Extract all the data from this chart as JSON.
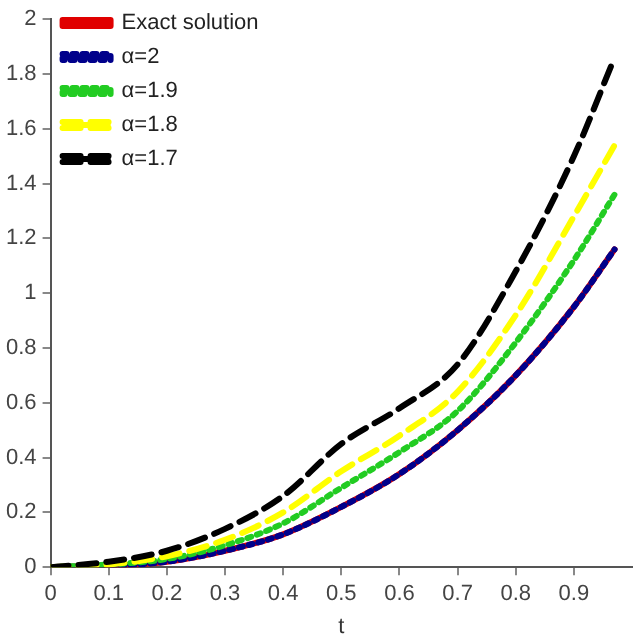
{
  "chart_data": {
    "type": "line",
    "xlabel": "t",
    "x": [
      0,
      0.1,
      0.2,
      0.3,
      0.4,
      0.5,
      0.6,
      0.7,
      0.8,
      0.9,
      0.97
    ],
    "xlim": [
      0,
      1
    ],
    "xticks": [
      0,
      0.1,
      0.2,
      0.3,
      0.4,
      0.5,
      0.6,
      0.7,
      0.8,
      0.9
    ],
    "ylim": [
      0,
      2
    ],
    "yticks": [
      0,
      0.2,
      0.4,
      0.6,
      0.8,
      1,
      1.2,
      1.4,
      1.6,
      1.8,
      2
    ],
    "grid": false,
    "legend": "top left",
    "marker": "none",
    "series": [
      {
        "name": "Exact solution",
        "color": "#e00000",
        "line_style": "solid",
        "values": [
          0,
          0.005,
          0.02,
          0.06,
          0.12,
          0.22,
          0.34,
          0.5,
          0.7,
          0.95,
          1.16
        ]
      },
      {
        "name": "α=2",
        "color": "#00008b",
        "line_style": "dotted",
        "values": [
          0,
          0.005,
          0.02,
          0.06,
          0.12,
          0.22,
          0.34,
          0.5,
          0.7,
          0.95,
          1.16
        ]
      },
      {
        "name": "α=1.9",
        "color": "#22cc22",
        "line_style": "dotted",
        "values": [
          0,
          0.01,
          0.03,
          0.08,
          0.16,
          0.29,
          0.42,
          0.57,
          0.82,
          1.12,
          1.36
        ]
      },
      {
        "name": "α=1.8",
        "color": "#ffff00",
        "line_style": "dashed",
        "values": [
          0,
          0.01,
          0.04,
          0.1,
          0.2,
          0.35,
          0.48,
          0.64,
          0.92,
          1.28,
          1.54
        ]
      },
      {
        "name": "α=1.7",
        "color": "#000000",
        "line_style": "dashed",
        "values": [
          0,
          0.02,
          0.06,
          0.14,
          0.26,
          0.45,
          0.58,
          0.74,
          1.08,
          1.5,
          1.86
        ]
      }
    ]
  }
}
